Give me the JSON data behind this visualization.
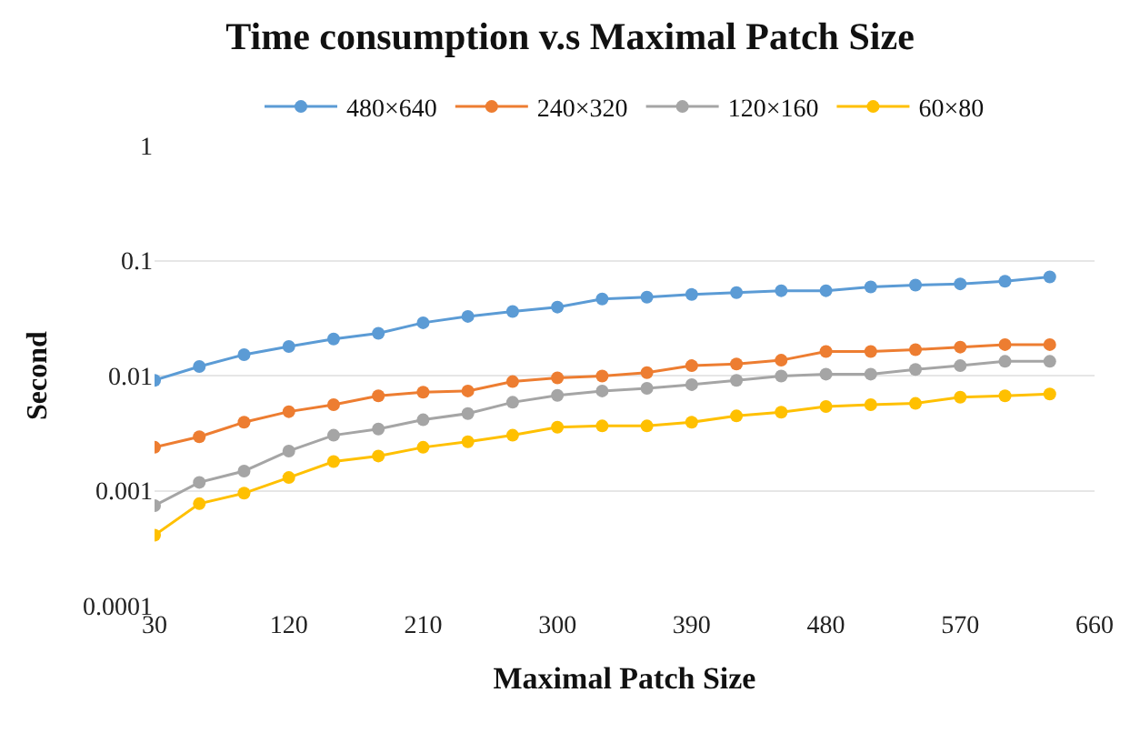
{
  "chart_data": {
    "type": "line",
    "title": "Time consumption v.s Maximal Patch Size",
    "xlabel": "Maximal Patch Size",
    "ylabel": "Second",
    "x": [
      30,
      60,
      90,
      120,
      150,
      180,
      210,
      240,
      270,
      300,
      330,
      360,
      390,
      420,
      450,
      480,
      510,
      540,
      570,
      600,
      630
    ],
    "series": [
      {
        "name": "480×640",
        "color": "#5b9bd5",
        "values": [
          0.0091,
          0.012,
          0.0152,
          0.0179,
          0.0208,
          0.0233,
          0.0288,
          0.0327,
          0.0361,
          0.0394,
          0.0463,
          0.048,
          0.0507,
          0.0527,
          0.0547,
          0.0547,
          0.059,
          0.0612,
          0.0627,
          0.066,
          0.072
        ]
      },
      {
        "name": "240×320",
        "color": "#ed7d31",
        "values": [
          0.00238,
          0.00294,
          0.00393,
          0.00486,
          0.00559,
          0.00667,
          0.00718,
          0.00735,
          0.00887,
          0.00955,
          0.0099,
          0.0106,
          0.0122,
          0.0126,
          0.0136,
          0.0162,
          0.0162,
          0.0168,
          0.0177,
          0.0186,
          0.0186
        ]
      },
      {
        "name": "120×160",
        "color": "#a5a5a5",
        "values": [
          0.00074,
          0.00118,
          0.00148,
          0.00221,
          0.00303,
          0.00343,
          0.00413,
          0.00468,
          0.00586,
          0.00674,
          0.00735,
          0.00775,
          0.00835,
          0.0091,
          0.0099,
          0.0103,
          0.0103,
          0.0113,
          0.0122,
          0.0133,
          0.0133
        ]
      },
      {
        "name": "60×80",
        "color": "#ffc000",
        "values": [
          0.00041,
          0.00077,
          0.00095,
          0.0013,
          0.00179,
          0.002,
          0.00238,
          0.00266,
          0.00303,
          0.00356,
          0.00365,
          0.00365,
          0.00393,
          0.00446,
          0.00481,
          0.00538,
          0.00559,
          0.00573,
          0.00649,
          0.00667,
          0.00692
        ]
      }
    ],
    "xlim": [
      30,
      660
    ],
    "xticks": [
      30,
      120,
      210,
      300,
      390,
      480,
      570,
      660
    ],
    "ylim": [
      0.0001,
      1
    ],
    "yticks": [
      0.0001,
      0.001,
      0.01,
      0.1,
      1
    ],
    "log": "y",
    "grid": "y",
    "legend": "top",
    "marker": "circle",
    "line_style": "solid"
  }
}
